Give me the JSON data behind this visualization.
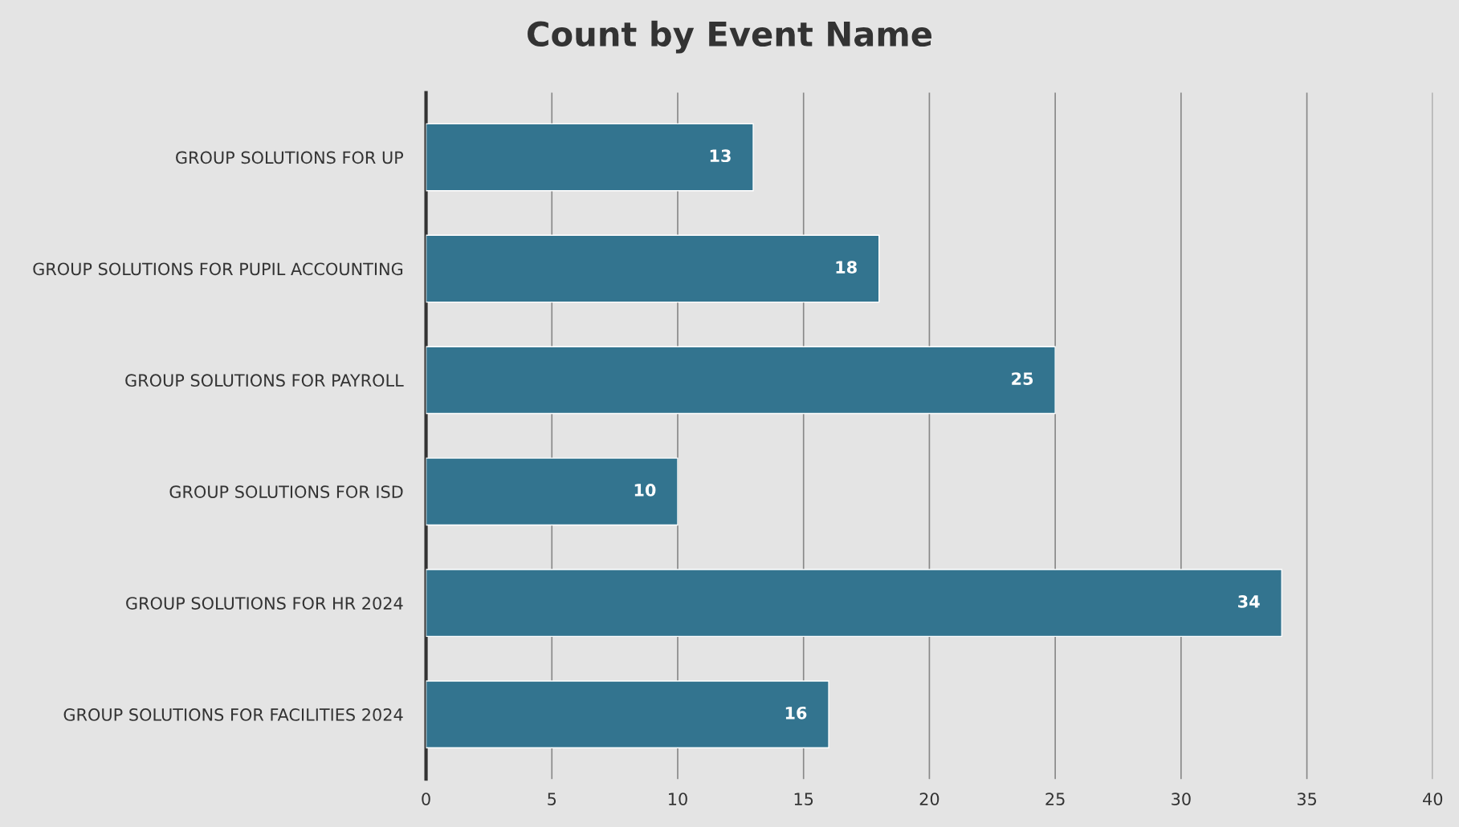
{
  "chart_data": {
    "type": "bar",
    "orientation": "horizontal",
    "title": "Count by Event Name",
    "categories": [
      "GROUP SOLUTIONS FOR UP",
      "GROUP SOLUTIONS FOR PUPIL ACCOUNTING",
      "GROUP SOLUTIONS FOR PAYROLL",
      "GROUP SOLUTIONS FOR ISD",
      "GROUP SOLUTIONS FOR HR 2024",
      "GROUP SOLUTIONS FOR FACILITIES 2024"
    ],
    "values": [
      13,
      18,
      25,
      10,
      34,
      16
    ],
    "color": "#33748f",
    "xlim": [
      0,
      40
    ],
    "xticks": [
      0,
      5,
      10,
      15,
      20,
      25,
      30,
      35,
      40
    ],
    "grid": "x",
    "data_labels": true
  }
}
